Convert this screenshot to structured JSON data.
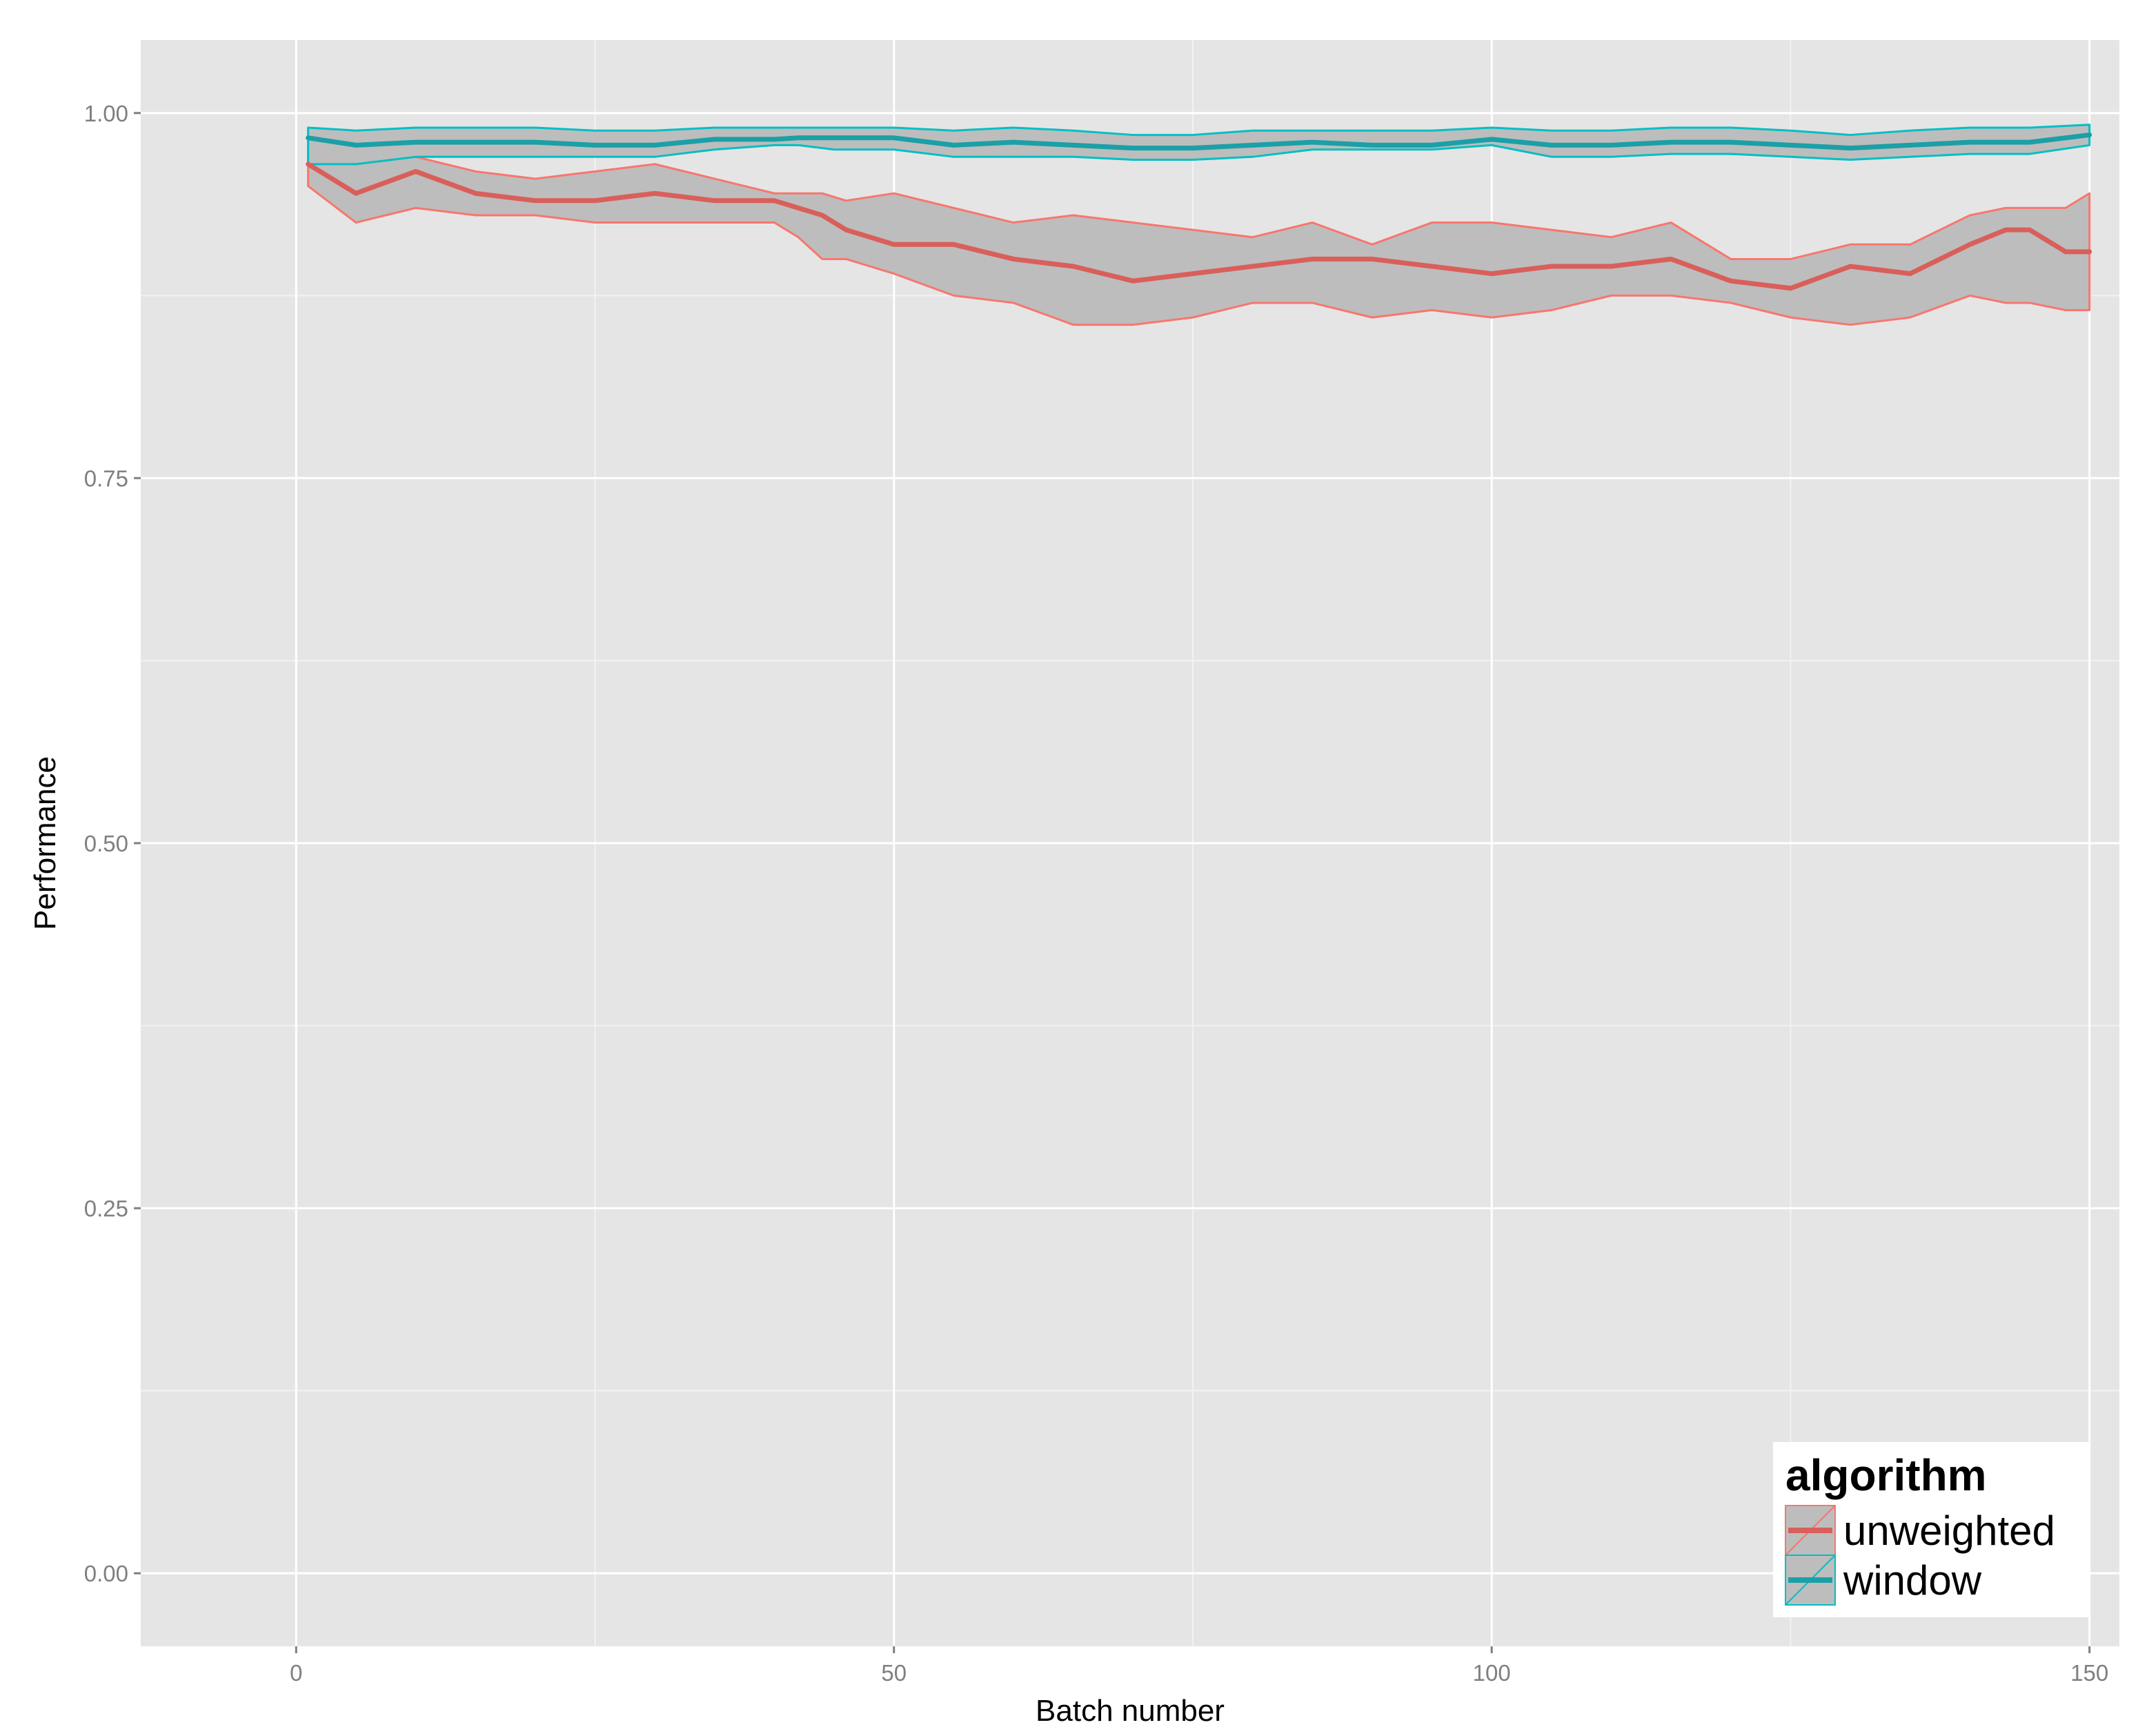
{
  "chart_data": {
    "type": "line",
    "title": "",
    "xlabel": "Batch number",
    "ylabel": "Performance",
    "xlim": [
      -13,
      152.5
    ],
    "ylim": [
      -0.05,
      1.05
    ],
    "xticks": [
      0,
      50,
      100,
      150
    ],
    "xtick_labels": [
      "0",
      "50",
      "100",
      "150"
    ],
    "yticks": [
      0.0,
      0.25,
      0.5,
      0.75,
      1.0
    ],
    "ytick_labels": [
      "0.00",
      "0.25",
      "0.50",
      "0.75",
      "1.00"
    ],
    "grid": true,
    "legend": {
      "title": "algorithm",
      "placement": "bottom-right",
      "entries": [
        "unweighted",
        "window"
      ]
    },
    "series": [
      {
        "name": "unweighted",
        "color": "#F8766D",
        "line_color": "#D95F5A",
        "ribbon_fill": "#BDBDBD",
        "x": [
          1,
          5,
          10,
          15,
          20,
          25,
          30,
          35,
          40,
          42,
          44,
          46,
          50,
          55,
          60,
          65,
          70,
          75,
          80,
          85,
          90,
          95,
          100,
          105,
          110,
          115,
          120,
          125,
          130,
          135,
          140,
          143,
          145,
          148,
          150
        ],
        "values": [
          0.965,
          0.945,
          0.96,
          0.945,
          0.94,
          0.94,
          0.945,
          0.94,
          0.94,
          0.935,
          0.93,
          0.92,
          0.91,
          0.91,
          0.9,
          0.895,
          0.885,
          0.89,
          0.895,
          0.9,
          0.9,
          0.895,
          0.89,
          0.895,
          0.895,
          0.9,
          0.885,
          0.88,
          0.895,
          0.89,
          0.91,
          0.92,
          0.92,
          0.905,
          0.905
        ],
        "lower": [
          0.95,
          0.925,
          0.935,
          0.93,
          0.93,
          0.925,
          0.925,
          0.925,
          0.925,
          0.915,
          0.9,
          0.9,
          0.89,
          0.875,
          0.87,
          0.855,
          0.855,
          0.86,
          0.87,
          0.87,
          0.86,
          0.865,
          0.86,
          0.865,
          0.875,
          0.875,
          0.87,
          0.86,
          0.855,
          0.86,
          0.875,
          0.87,
          0.87,
          0.865,
          0.865
        ],
        "upper": [
          0.975,
          0.965,
          0.97,
          0.96,
          0.955,
          0.96,
          0.965,
          0.955,
          0.945,
          0.945,
          0.945,
          0.94,
          0.945,
          0.935,
          0.925,
          0.93,
          0.925,
          0.92,
          0.915,
          0.925,
          0.91,
          0.925,
          0.925,
          0.92,
          0.915,
          0.925,
          0.9,
          0.9,
          0.91,
          0.91,
          0.93,
          0.935,
          0.935,
          0.935,
          0.945
        ]
      },
      {
        "name": "window",
        "color": "#00BFC4",
        "line_color": "#1AA0A6",
        "ribbon_fill": "#BDBDBD",
        "x": [
          1,
          5,
          10,
          15,
          20,
          25,
          30,
          35,
          40,
          42,
          45,
          50,
          55,
          60,
          65,
          70,
          75,
          80,
          85,
          90,
          95,
          100,
          105,
          110,
          115,
          120,
          125,
          130,
          135,
          140,
          145,
          150
        ],
        "values": [
          0.983,
          0.978,
          0.98,
          0.98,
          0.98,
          0.978,
          0.978,
          0.982,
          0.982,
          0.983,
          0.983,
          0.983,
          0.978,
          0.98,
          0.978,
          0.976,
          0.976,
          0.978,
          0.98,
          0.978,
          0.978,
          0.982,
          0.978,
          0.978,
          0.98,
          0.98,
          0.978,
          0.976,
          0.978,
          0.98,
          0.98,
          0.985
        ],
        "lower": [
          0.965,
          0.965,
          0.97,
          0.97,
          0.97,
          0.97,
          0.97,
          0.975,
          0.978,
          0.978,
          0.975,
          0.975,
          0.97,
          0.97,
          0.97,
          0.968,
          0.968,
          0.97,
          0.975,
          0.975,
          0.975,
          0.978,
          0.97,
          0.97,
          0.972,
          0.972,
          0.97,
          0.968,
          0.97,
          0.972,
          0.972,
          0.978
        ],
        "upper": [
          0.99,
          0.988,
          0.99,
          0.99,
          0.99,
          0.988,
          0.988,
          0.99,
          0.99,
          0.99,
          0.99,
          0.99,
          0.988,
          0.99,
          0.988,
          0.985,
          0.985,
          0.988,
          0.988,
          0.988,
          0.988,
          0.99,
          0.988,
          0.988,
          0.99,
          0.99,
          0.988,
          0.985,
          0.988,
          0.99,
          0.99,
          0.992
        ]
      }
    ]
  }
}
